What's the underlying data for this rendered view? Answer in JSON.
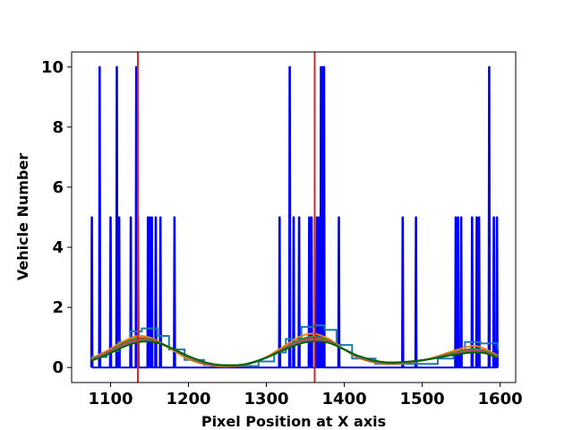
{
  "chart_data": {
    "type": "line",
    "title": "",
    "xlabel": "Pixel Position at X axis",
    "ylabel": "Vehicle Number",
    "xlim": [
      1050,
      1620
    ],
    "ylim": [
      -0.5,
      10.5
    ],
    "xticks": [
      1100,
      1200,
      1300,
      1400,
      1500,
      1600
    ],
    "yticks": [
      0,
      2,
      4,
      6,
      8,
      10
    ],
    "grid": false,
    "legend": "none",
    "vlines": [
      {
        "x": 1135,
        "color": "#d62728"
      },
      {
        "x": 1362,
        "color": "#d62728"
      }
    ],
    "series": [
      {
        "kind": "spikes",
        "color": "#0000ff",
        "x_start": 1075,
        "x_end": 1597,
        "baseline": 0,
        "points": [
          [
            1076,
            5
          ],
          [
            1086,
            10
          ],
          [
            1100,
            5
          ],
          [
            1108,
            10
          ],
          [
            1111,
            5
          ],
          [
            1126,
            5
          ],
          [
            1133,
            10
          ],
          [
            1135,
            5
          ],
          [
            1148,
            5
          ],
          [
            1150,
            5
          ],
          [
            1153,
            5
          ],
          [
            1158,
            5
          ],
          [
            1164,
            5
          ],
          [
            1182,
            5
          ],
          [
            1317,
            5
          ],
          [
            1330,
            10
          ],
          [
            1335,
            5
          ],
          [
            1342,
            5
          ],
          [
            1355,
            5
          ],
          [
            1358,
            5
          ],
          [
            1365,
            5
          ],
          [
            1368,
            5
          ],
          [
            1370,
            10
          ],
          [
            1372,
            10
          ],
          [
            1374,
            10
          ],
          [
            1393,
            5
          ],
          [
            1475,
            5
          ],
          [
            1492,
            5
          ],
          [
            1543,
            5
          ],
          [
            1546,
            5
          ],
          [
            1550,
            5
          ],
          [
            1564,
            5
          ],
          [
            1570,
            5
          ],
          [
            1573,
            5
          ],
          [
            1586,
            10
          ],
          [
            1592,
            5
          ],
          [
            1596,
            5
          ]
        ]
      },
      {
        "kind": "step",
        "color": "#1f77b4",
        "x": [
          1075,
          1095,
          1110,
          1125,
          1140,
          1160,
          1175,
          1195,
          1220,
          1260,
          1290,
          1310,
          1325,
          1345,
          1360,
          1375,
          1390,
          1410,
          1440,
          1480,
          1520,
          1540,
          1555,
          1575,
          1597
        ],
        "y": [
          0.35,
          0.55,
          0.85,
          1.2,
          1.3,
          1.05,
          0.6,
          0.25,
          0.08,
          0.05,
          0.2,
          0.5,
          0.95,
          1.35,
          1.4,
          1.25,
          0.75,
          0.3,
          0.12,
          0.12,
          0.3,
          0.55,
          0.85,
          0.8,
          0.6
        ]
      },
      {
        "kind": "smooth",
        "color": "#ff7f0e",
        "x": [
          1075,
          1095,
          1115,
          1135,
          1155,
          1175,
          1200,
          1225,
          1250,
          1275,
          1300,
          1325,
          1345,
          1362,
          1380,
          1400,
          1420,
          1450,
          1480,
          1510,
          1540,
          1565,
          1580,
          1597
        ],
        "y": [
          0.3,
          0.55,
          0.85,
          1.05,
          0.95,
          0.65,
          0.28,
          0.08,
          0.03,
          0.1,
          0.35,
          0.75,
          1.05,
          1.12,
          0.95,
          0.6,
          0.3,
          0.12,
          0.15,
          0.3,
          0.55,
          0.72,
          0.62,
          0.4
        ]
      },
      {
        "kind": "smooth",
        "color": "#2ca02c",
        "x": [
          1075,
          1095,
          1115,
          1135,
          1155,
          1175,
          1200,
          1225,
          1250,
          1275,
          1300,
          1325,
          1345,
          1362,
          1380,
          1400,
          1420,
          1450,
          1480,
          1510,
          1540,
          1565,
          1580,
          1597
        ],
        "y": [
          0.28,
          0.5,
          0.8,
          0.98,
          0.92,
          0.68,
          0.32,
          0.1,
          0.04,
          0.1,
          0.33,
          0.68,
          0.95,
          1.02,
          0.9,
          0.6,
          0.32,
          0.14,
          0.16,
          0.28,
          0.5,
          0.62,
          0.56,
          0.38
        ]
      },
      {
        "kind": "smooth",
        "color": "#d62728",
        "x": [
          1075,
          1095,
          1115,
          1135,
          1155,
          1175,
          1200,
          1225,
          1250,
          1275,
          1300,
          1325,
          1345,
          1362,
          1380,
          1400,
          1420,
          1450,
          1480,
          1510,
          1540,
          1565,
          1580,
          1597
        ],
        "y": [
          0.26,
          0.48,
          0.76,
          0.94,
          0.9,
          0.68,
          0.34,
          0.11,
          0.05,
          0.11,
          0.33,
          0.66,
          0.9,
          0.97,
          0.87,
          0.6,
          0.33,
          0.15,
          0.17,
          0.28,
          0.47,
          0.58,
          0.53,
          0.36
        ]
      },
      {
        "kind": "smooth",
        "color": "#9467bd",
        "x": [
          1075,
          1095,
          1115,
          1135,
          1155,
          1175,
          1200,
          1225,
          1250,
          1275,
          1300,
          1325,
          1345,
          1362,
          1380,
          1400,
          1420,
          1450,
          1480,
          1510,
          1540,
          1565,
          1580,
          1597
        ],
        "y": [
          0.25,
          0.46,
          0.73,
          0.9,
          0.88,
          0.68,
          0.35,
          0.12,
          0.06,
          0.12,
          0.33,
          0.64,
          0.87,
          0.93,
          0.85,
          0.6,
          0.34,
          0.16,
          0.18,
          0.28,
          0.45,
          0.55,
          0.51,
          0.35
        ]
      },
      {
        "kind": "smooth",
        "color": "#8c564b",
        "x": [
          1075,
          1095,
          1115,
          1135,
          1155,
          1175,
          1200,
          1225,
          1250,
          1275,
          1300,
          1325,
          1345,
          1362,
          1380,
          1400,
          1420,
          1450,
          1480,
          1510,
          1540,
          1565,
          1580,
          1597
        ],
        "y": [
          0.24,
          0.45,
          0.71,
          0.88,
          0.87,
          0.68,
          0.36,
          0.13,
          0.06,
          0.12,
          0.33,
          0.63,
          0.85,
          0.91,
          0.84,
          0.6,
          0.35,
          0.17,
          0.18,
          0.28,
          0.44,
          0.53,
          0.5,
          0.34
        ]
      },
      {
        "kind": "smooth",
        "color": "#7f7f7f",
        "x": [
          1075,
          1095,
          1115,
          1135,
          1155,
          1175,
          1200,
          1225,
          1250,
          1275,
          1300,
          1325,
          1345,
          1362,
          1380,
          1400,
          1420,
          1450,
          1480,
          1510,
          1540,
          1565,
          1580,
          1597
        ],
        "y": [
          0.23,
          0.43,
          0.69,
          0.86,
          0.86,
          0.68,
          0.37,
          0.14,
          0.07,
          0.12,
          0.33,
          0.62,
          0.83,
          0.89,
          0.83,
          0.6,
          0.36,
          0.18,
          0.19,
          0.28,
          0.43,
          0.51,
          0.49,
          0.33
        ]
      },
      {
        "kind": "smooth",
        "color": "#006400",
        "x": [
          1075,
          1095,
          1115,
          1135,
          1155,
          1175,
          1200,
          1225,
          1250,
          1275,
          1300,
          1325,
          1345,
          1362,
          1380,
          1400,
          1420,
          1450,
          1480,
          1510,
          1540,
          1565,
          1580,
          1597
        ],
        "y": [
          0.22,
          0.42,
          0.67,
          0.84,
          0.85,
          0.68,
          0.38,
          0.15,
          0.07,
          0.12,
          0.33,
          0.61,
          0.81,
          0.87,
          0.82,
          0.6,
          0.37,
          0.18,
          0.19,
          0.28,
          0.42,
          0.5,
          0.48,
          0.32
        ]
      }
    ]
  }
}
